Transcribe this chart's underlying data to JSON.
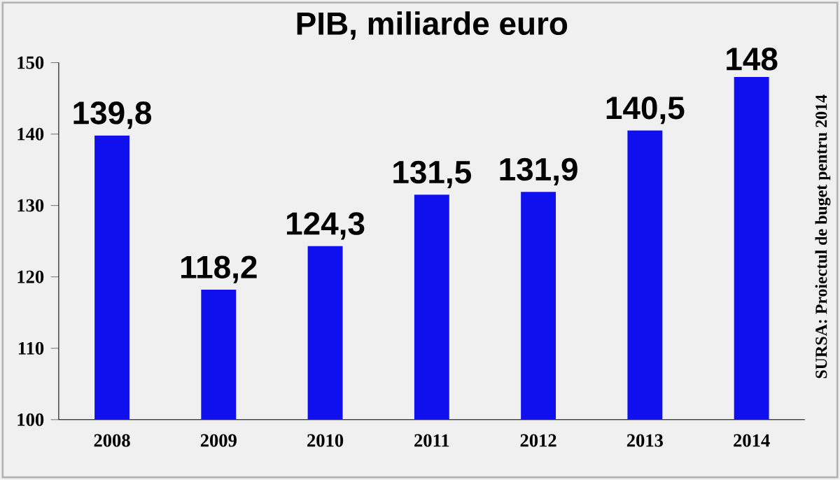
{
  "chart_data": {
    "type": "bar",
    "title": "PIB, miliarde euro",
    "categories": [
      "2008",
      "2009",
      "2010",
      "2011",
      "2012",
      "2013",
      "2014"
    ],
    "values": [
      139.8,
      118.2,
      124.3,
      131.5,
      131.9,
      140.5,
      148
    ],
    "value_labels": [
      "139,8",
      "118,2",
      "124,3",
      "131,5",
      "131,9",
      "140,5",
      "148"
    ],
    "color": "#1010ee",
    "ylim": [
      100,
      150
    ],
    "yticks": [
      100,
      110,
      120,
      130,
      140,
      150
    ],
    "annotations": [
      "SURSA: Proiectul de buget pentru 2014"
    ]
  }
}
